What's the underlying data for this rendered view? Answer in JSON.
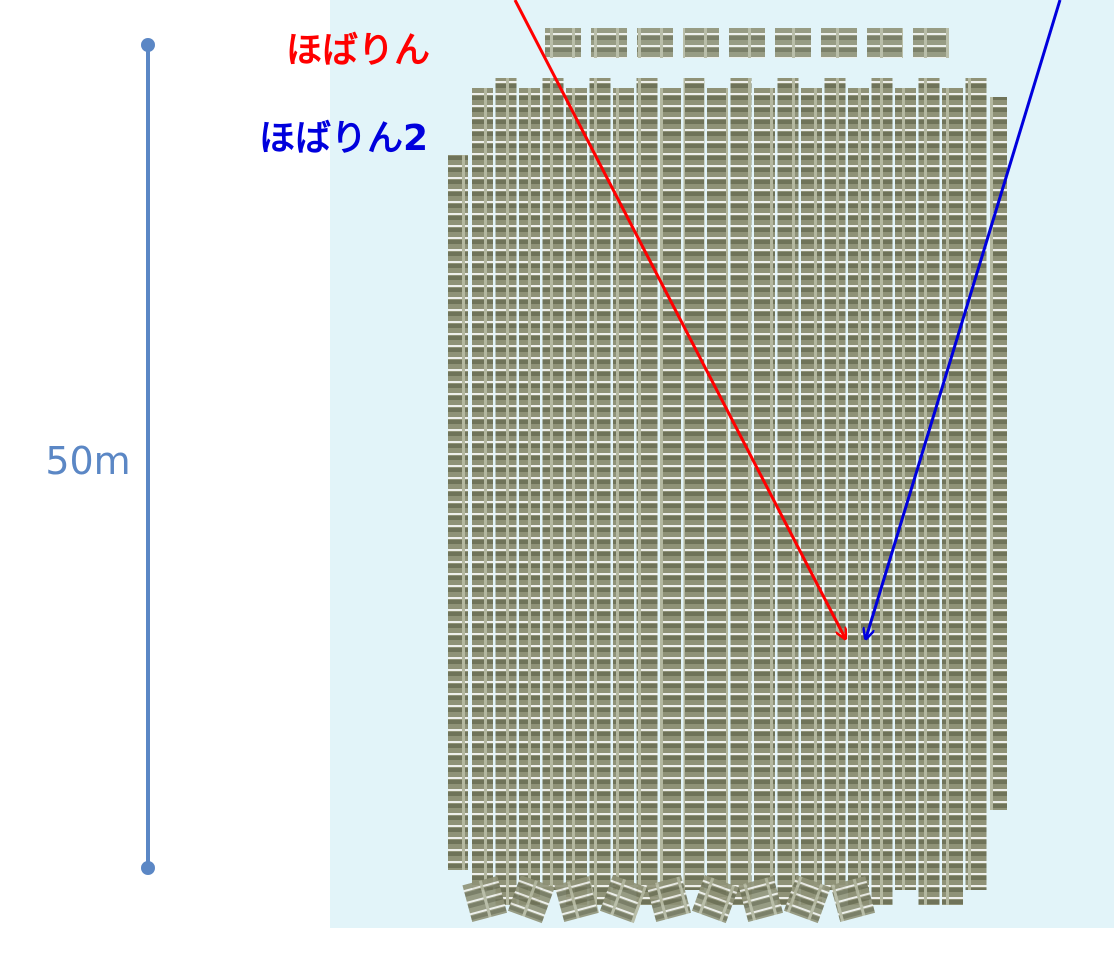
{
  "labels": {
    "red": "ほばりん",
    "blue": "ほばりん2"
  },
  "scale": {
    "label": "50m"
  }
}
